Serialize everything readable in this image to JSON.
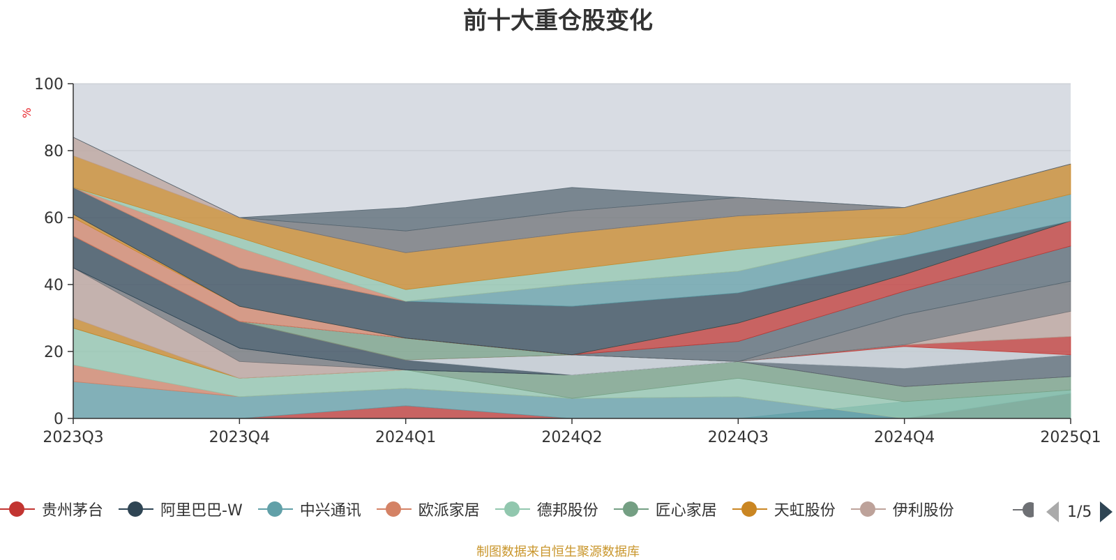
{
  "title": "前十大重仓股变化",
  "source_note": "制图数据来自恒生聚源数据库",
  "legend_page": "1/5",
  "legend": [
    {
      "name": "贵州茅台",
      "color": "#c23531"
    },
    {
      "name": "阿里巴巴-W",
      "color": "#2f4554"
    },
    {
      "name": "中兴通讯",
      "color": "#61a0a8"
    },
    {
      "name": "欧派家居",
      "color": "#d48265"
    },
    {
      "name": "德邦股份",
      "color": "#91c7ae"
    },
    {
      "name": "匠心家居",
      "color": "#749f83"
    },
    {
      "name": "天虹股份",
      "color": "#ca8622"
    },
    {
      "name": "伊利股份",
      "color": "#bda29a"
    },
    {
      "name": "",
      "color": "#6e7074"
    }
  ],
  "chart_data": {
    "type": "area",
    "stacked": true,
    "y_unit": "%",
    "ylim": [
      0,
      100
    ],
    "yticks": [
      0,
      20,
      40,
      60,
      80,
      100
    ],
    "grid": true,
    "x": [
      "2023Q3",
      "2023Q4",
      "2024Q1",
      "2024Q2",
      "2024Q3",
      "2024Q4",
      "2025Q1"
    ],
    "bands": [
      {
        "color": "#c23531",
        "lower": [
          0,
          0,
          0,
          0,
          0,
          0,
          0
        ],
        "upper": [
          0,
          0,
          3.8,
          0,
          0,
          0,
          0
        ]
      },
      {
        "color": "#61a0a8",
        "lower": [
          0,
          0,
          3.8,
          0,
          0,
          0,
          0
        ],
        "upper": [
          11,
          6.5,
          9,
          6,
          6.5,
          0,
          0
        ]
      },
      {
        "color": "#2f4554",
        "lower": [
          0,
          0,
          0,
          0,
          0,
          0,
          0
        ],
        "upper": [
          0,
          0,
          0,
          0,
          0,
          0,
          7.5
        ]
      },
      {
        "color": "#61a0a8",
        "lower": [
          0,
          0,
          0,
          0,
          0,
          0,
          7.5
        ],
        "upper": [
          0,
          0,
          0,
          0,
          0,
          5,
          8.5
        ]
      },
      {
        "color": "#d48265",
        "lower": [
          11,
          6.5,
          9,
          6,
          6.5,
          0,
          0
        ],
        "upper": [
          16,
          6.5,
          9,
          6,
          6.5,
          0,
          0
        ]
      },
      {
        "color": "#91c7ae",
        "lower": [
          16,
          6.5,
          9,
          6,
          6.5,
          0,
          0
        ],
        "upper": [
          27,
          12,
          14.5,
          6,
          12,
          5,
          8.5
        ]
      },
      {
        "color": "#749f83",
        "lower": [
          27,
          12,
          14.5,
          6,
          12,
          5,
          8.5
        ],
        "upper": [
          27,
          12,
          14.5,
          13,
          17,
          9.5,
          12.5
        ]
      },
      {
        "color": "#ca8622",
        "lower": [
          27,
          12,
          14.5,
          13,
          17,
          9.5,
          12.5
        ],
        "upper": [
          30,
          12,
          14.5,
          13,
          17,
          9.5,
          12.5
        ]
      },
      {
        "color": "#bda29a",
        "lower": [
          30,
          12,
          14.5,
          13,
          17,
          9.5,
          12.5
        ],
        "upper": [
          45,
          17,
          14.5,
          13,
          17,
          9.5,
          12.5
        ]
      },
      {
        "color": "#6e7074",
        "lower": [
          45,
          17,
          14.5,
          13,
          17,
          9.5,
          12.5
        ],
        "upper": [
          45,
          21,
          14.5,
          13,
          17,
          9.5,
          12.5
        ]
      },
      {
        "color": "#546570",
        "lower": [
          45,
          21,
          14.5,
          13,
          17,
          9.5,
          12.5
        ],
        "upper": [
          45,
          21,
          14.5,
          13,
          17,
          15,
          19
        ]
      },
      {
        "color": "#2f4554",
        "lower": [
          45,
          21,
          14.5,
          13,
          17,
          15,
          19
        ],
        "upper": [
          54.5,
          29,
          17.5,
          13,
          17,
          15,
          19
        ]
      },
      {
        "color": "#c4ccd3",
        "lower": [
          54.5,
          29,
          17.5,
          13,
          17,
          15,
          19
        ],
        "upper": [
          54.5,
          29,
          17.5,
          19,
          17,
          21.5,
          19
        ]
      },
      {
        "color": "#c23531",
        "lower": [
          54.5,
          29,
          17.5,
          19,
          17,
          21.5,
          19
        ],
        "upper": [
          54.5,
          29,
          17.5,
          19,
          17,
          22,
          24.5
        ]
      },
      {
        "color": "#749f83",
        "lower": [
          54.5,
          29,
          17.5,
          19,
          17,
          22,
          24.5
        ],
        "upper": [
          54.5,
          29,
          24,
          19,
          17,
          22,
          24.5
        ]
      },
      {
        "color": "#bda29a",
        "lower": [
          54.5,
          29,
          24,
          19,
          17,
          22,
          24.5
        ],
        "upper": [
          54.5,
          29,
          24,
          19,
          17,
          22,
          32
        ]
      },
      {
        "color": "#6e7074",
        "lower": [
          54.5,
          29,
          24,
          19,
          17,
          22,
          32
        ],
        "upper": [
          54.5,
          29,
          24,
          19,
          17,
          31,
          41
        ]
      },
      {
        "color": "#546570",
        "lower": [
          54.5,
          29,
          24,
          19,
          17,
          31,
          41
        ],
        "upper": [
          54.5,
          29,
          24,
          19,
          23,
          38,
          51.5
        ]
      },
      {
        "color": "#c23531",
        "lower": [
          54.5,
          29,
          24,
          19,
          23,
          38,
          51.5
        ],
        "upper": [
          54.5,
          29,
          24,
          19,
          28.5,
          43,
          59
        ]
      },
      {
        "color": "#d48265",
        "lower": [
          54.5,
          29,
          24,
          19,
          28.5,
          43,
          59
        ],
        "upper": [
          60,
          33.5,
          24,
          19,
          28.5,
          43,
          59
        ]
      },
      {
        "color": "#ca8622",
        "lower": [
          60,
          33.5,
          24,
          19,
          28.5,
          43,
          59
        ],
        "upper": [
          61,
          33.5,
          24,
          19,
          28.5,
          43,
          59
        ]
      },
      {
        "color": "#2f4554",
        "lower": [
          61,
          33.5,
          24,
          19,
          28.5,
          43,
          59
        ],
        "upper": [
          69,
          45,
          35,
          33.5,
          37.5,
          48,
          59
        ]
      },
      {
        "color": "#61a0a8",
        "lower": [
          69,
          45,
          35,
          33.5,
          37.5,
          48,
          59
        ],
        "upper": [
          69,
          45,
          35,
          40,
          44,
          55,
          67
        ]
      },
      {
        "color": "#d48265",
        "lower": [
          69,
          45,
          35,
          40,
          44,
          55,
          67
        ],
        "upper": [
          69,
          51,
          35,
          40,
          44,
          55,
          67
        ]
      },
      {
        "color": "#91c7ae",
        "lower": [
          69,
          51,
          35,
          40,
          44,
          55,
          67
        ],
        "upper": [
          69,
          54,
          38.5,
          44.5,
          50.5,
          55,
          67
        ]
      },
      {
        "color": "#ca8622",
        "lower": [
          69,
          54,
          38.5,
          44.5,
          50.5,
          55,
          67
        ],
        "upper": [
          78.5,
          60,
          49.5,
          55.5,
          60.5,
          63,
          76
        ]
      },
      {
        "color": "#bda29a",
        "lower": [
          78.5,
          60,
          49.5,
          55.5,
          60.5,
          63,
          76
        ],
        "upper": [
          84,
          60,
          49.5,
          55.5,
          60.5,
          63,
          76
        ]
      },
      {
        "color": "#6e7074",
        "lower": [
          84,
          60,
          49.5,
          55.5,
          60.5,
          63,
          76
        ],
        "upper": [
          84,
          60,
          56,
          62,
          66,
          63,
          76
        ]
      },
      {
        "color": "#546570",
        "lower": [
          84,
          60,
          56,
          62,
          66,
          63,
          76
        ],
        "upper": [
          84,
          60,
          63,
          69,
          66,
          63,
          76
        ]
      }
    ]
  }
}
